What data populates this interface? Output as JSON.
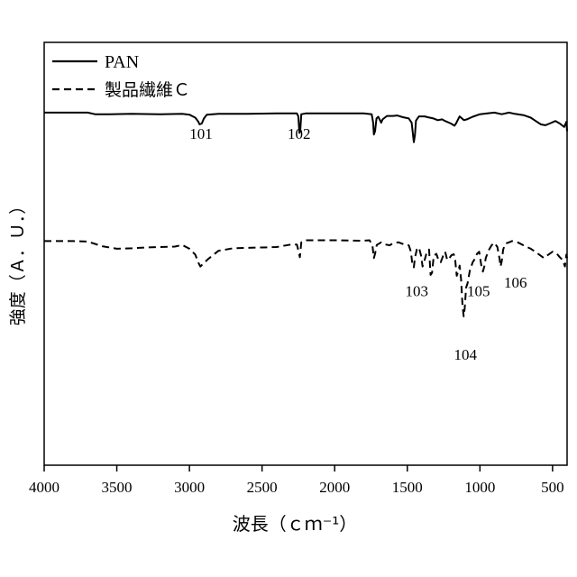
{
  "chart_data": {
    "type": "line",
    "title": "",
    "xlabel": "波長（ｃｍ⁻¹）",
    "ylabel": "強度（Ａ．Ｕ．）",
    "xlim": [
      4000,
      400
    ],
    "x_reversed": true,
    "x_ticks": [
      4000,
      3500,
      3000,
      2500,
      2000,
      1500,
      1000,
      500
    ],
    "y_ticks": [],
    "grid": false,
    "legend_position": "top-left",
    "series": [
      {
        "name": "PAN",
        "line_style": "solid",
        "points": [
          [
            4000,
            0.834
          ],
          [
            3800,
            0.834
          ],
          [
            3700,
            0.834
          ],
          [
            3650,
            0.83
          ],
          [
            3550,
            0.83
          ],
          [
            3400,
            0.831
          ],
          [
            3200,
            0.83
          ],
          [
            3050,
            0.831
          ],
          [
            3000,
            0.829
          ],
          [
            2960,
            0.822
          ],
          [
            2940,
            0.813
          ],
          [
            2930,
            0.806
          ],
          [
            2915,
            0.808
          ],
          [
            2900,
            0.82
          ],
          [
            2880,
            0.829
          ],
          [
            2800,
            0.831
          ],
          [
            2600,
            0.831
          ],
          [
            2400,
            0.832
          ],
          [
            2260,
            0.832
          ],
          [
            2250,
            0.825
          ],
          [
            2243,
            0.786
          ],
          [
            2237,
            0.79
          ],
          [
            2230,
            0.83
          ],
          [
            2200,
            0.832
          ],
          [
            2000,
            0.832
          ],
          [
            1800,
            0.832
          ],
          [
            1745,
            0.83
          ],
          [
            1735,
            0.81
          ],
          [
            1730,
            0.782
          ],
          [
            1722,
            0.79
          ],
          [
            1712,
            0.82
          ],
          [
            1700,
            0.824
          ],
          [
            1680,
            0.81
          ],
          [
            1670,
            0.818
          ],
          [
            1640,
            0.826
          ],
          [
            1600,
            0.826
          ],
          [
            1570,
            0.827
          ],
          [
            1530,
            0.823
          ],
          [
            1490,
            0.82
          ],
          [
            1470,
            0.81
          ],
          [
            1455,
            0.764
          ],
          [
            1448,
            0.78
          ],
          [
            1440,
            0.815
          ],
          [
            1420,
            0.825
          ],
          [
            1380,
            0.825
          ],
          [
            1360,
            0.823
          ],
          [
            1320,
            0.82
          ],
          [
            1290,
            0.816
          ],
          [
            1260,
            0.818
          ],
          [
            1240,
            0.814
          ],
          [
            1200,
            0.808
          ],
          [
            1175,
            0.803
          ],
          [
            1165,
            0.808
          ],
          [
            1140,
            0.825
          ],
          [
            1110,
            0.816
          ],
          [
            1090,
            0.818
          ],
          [
            1050,
            0.824
          ],
          [
            1000,
            0.83
          ],
          [
            950,
            0.832
          ],
          [
            900,
            0.834
          ],
          [
            850,
            0.83
          ],
          [
            800,
            0.834
          ],
          [
            760,
            0.831
          ],
          [
            700,
            0.828
          ],
          [
            650,
            0.822
          ],
          [
            620,
            0.815
          ],
          [
            580,
            0.806
          ],
          [
            550,
            0.804
          ],
          [
            520,
            0.808
          ],
          [
            480,
            0.814
          ],
          [
            450,
            0.808
          ],
          [
            420,
            0.8
          ],
          [
            405,
            0.812
          ],
          [
            400,
            0.79
          ]
        ]
      },
      {
        "name": "製品繊維Ｃ",
        "line_style": "dashed",
        "points": [
          [
            4000,
            0.53
          ],
          [
            3800,
            0.53
          ],
          [
            3700,
            0.529
          ],
          [
            3600,
            0.518
          ],
          [
            3500,
            0.512
          ],
          [
            3400,
            0.513
          ],
          [
            3300,
            0.515
          ],
          [
            3200,
            0.516
          ],
          [
            3100,
            0.517
          ],
          [
            3050,
            0.521
          ],
          [
            3000,
            0.512
          ],
          [
            2960,
            0.498
          ],
          [
            2940,
            0.48
          ],
          [
            2925,
            0.47
          ],
          [
            2900,
            0.478
          ],
          [
            2870,
            0.488
          ],
          [
            2800,
            0.507
          ],
          [
            2700,
            0.513
          ],
          [
            2600,
            0.514
          ],
          [
            2500,
            0.515
          ],
          [
            2400,
            0.516
          ],
          [
            2300,
            0.522
          ],
          [
            2260,
            0.522
          ],
          [
            2245,
            0.5
          ],
          [
            2240,
            0.492
          ],
          [
            2230,
            0.527
          ],
          [
            2200,
            0.532
          ],
          [
            2000,
            0.532
          ],
          [
            1800,
            0.531
          ],
          [
            1760,
            0.532
          ],
          [
            1740,
            0.52
          ],
          [
            1730,
            0.49
          ],
          [
            1722,
            0.5
          ],
          [
            1710,
            0.521
          ],
          [
            1680,
            0.527
          ],
          [
            1650,
            0.522
          ],
          [
            1620,
            0.52
          ],
          [
            1600,
            0.525
          ],
          [
            1560,
            0.527
          ],
          [
            1520,
            0.522
          ],
          [
            1490,
            0.52
          ],
          [
            1475,
            0.505
          ],
          [
            1465,
            0.475
          ],
          [
            1455,
            0.468
          ],
          [
            1448,
            0.49
          ],
          [
            1435,
            0.51
          ],
          [
            1420,
            0.515
          ],
          [
            1405,
            0.495
          ],
          [
            1395,
            0.47
          ],
          [
            1380,
            0.486
          ],
          [
            1365,
            0.505
          ],
          [
            1350,
            0.51
          ],
          [
            1340,
            0.45
          ],
          [
            1330,
            0.455
          ],
          [
            1318,
            0.495
          ],
          [
            1300,
            0.5
          ],
          [
            1285,
            0.485
          ],
          [
            1270,
            0.48
          ],
          [
            1255,
            0.494
          ],
          [
            1240,
            0.505
          ],
          [
            1225,
            0.485
          ],
          [
            1210,
            0.49
          ],
          [
            1195,
            0.497
          ],
          [
            1180,
            0.499
          ],
          [
            1170,
            0.485
          ],
          [
            1160,
            0.448
          ],
          [
            1150,
            0.458
          ],
          [
            1140,
            0.472
          ],
          [
            1130,
            0.44
          ],
          [
            1120,
            0.378
          ],
          [
            1112,
            0.352
          ],
          [
            1105,
            0.37
          ],
          [
            1095,
            0.42
          ],
          [
            1085,
            0.43
          ],
          [
            1070,
            0.46
          ],
          [
            1050,
            0.48
          ],
          [
            1035,
            0.488
          ],
          [
            1020,
            0.5
          ],
          [
            1005,
            0.505
          ],
          [
            990,
            0.472
          ],
          [
            980,
            0.458
          ],
          [
            970,
            0.47
          ],
          [
            960,
            0.49
          ],
          [
            940,
            0.508
          ],
          [
            920,
            0.52
          ],
          [
            900,
            0.526
          ],
          [
            880,
            0.516
          ],
          [
            865,
            0.488
          ],
          [
            858,
            0.47
          ],
          [
            850,
            0.482
          ],
          [
            840,
            0.51
          ],
          [
            825,
            0.524
          ],
          [
            800,
            0.527
          ],
          [
            780,
            0.53
          ],
          [
            740,
            0.527
          ],
          [
            700,
            0.52
          ],
          [
            650,
            0.512
          ],
          [
            620,
            0.505
          ],
          [
            580,
            0.495
          ],
          [
            560,
            0.49
          ],
          [
            540,
            0.495
          ],
          [
            500,
            0.505
          ],
          [
            470,
            0.5
          ],
          [
            450,
            0.492
          ],
          [
            430,
            0.485
          ],
          [
            415,
            0.47
          ],
          [
            405,
            0.498
          ],
          [
            400,
            0.49
          ]
        ]
      }
    ],
    "annotations": [
      {
        "label": "101",
        "x": 2920,
        "y": 0.772
      },
      {
        "label": "102",
        "x": 2245,
        "y": 0.772
      },
      {
        "label": "103",
        "x": 1435,
        "y": 0.4
      },
      {
        "label": "104",
        "x": 1100,
        "y": 0.25
      },
      {
        "label": "105",
        "x": 1010,
        "y": 0.4
      },
      {
        "label": "106",
        "x": 755,
        "y": 0.42
      }
    ],
    "y_range": [
      0,
      1
    ]
  },
  "legend": {
    "items": [
      {
        "label": "PAN",
        "line_style": "solid"
      },
      {
        "label": "製品繊維Ｃ",
        "line_style": "dashed"
      }
    ]
  }
}
